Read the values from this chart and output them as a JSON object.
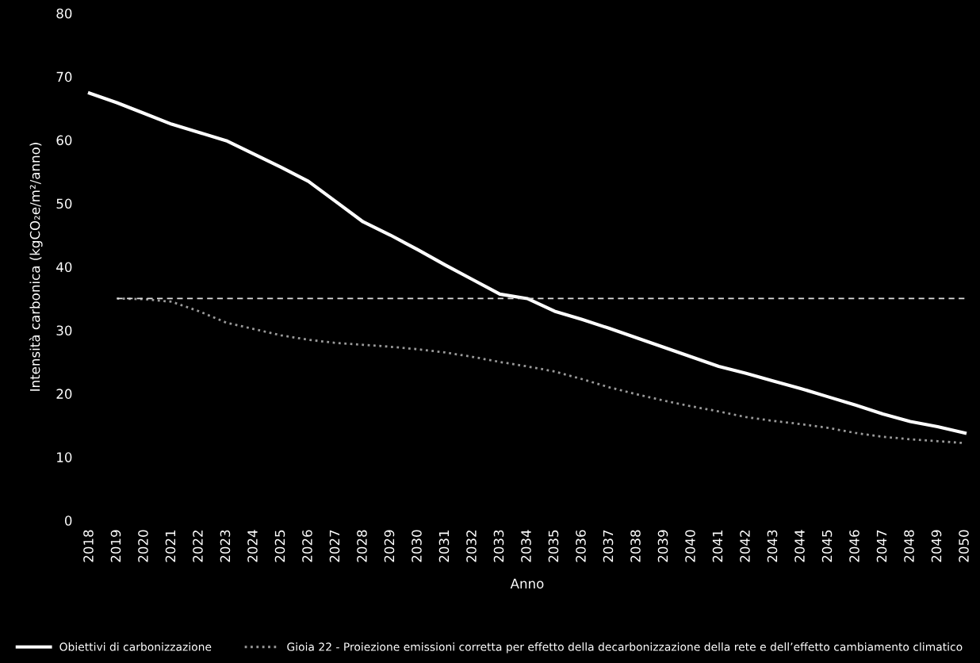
{
  "chart_data": {
    "type": "line",
    "xlabel": "Anno",
    "ylabel": "Intensità carbonica (kgCO₂e/m²/anno)",
    "categories": [
      "2018",
      "2019",
      "2020",
      "2021",
      "2022",
      "2023",
      "2024",
      "2025",
      "2026",
      "2027",
      "2028",
      "2029",
      "2030",
      "2031",
      "2032",
      "2033",
      "2034",
      "2035",
      "2036",
      "2037",
      "2038",
      "2039",
      "2040",
      "2041",
      "2042",
      "2043",
      "2044",
      "2045",
      "2046",
      "2047",
      "2048",
      "2049",
      "2050"
    ],
    "ylim": [
      0,
      80
    ],
    "yticks": [
      0,
      10,
      20,
      30,
      40,
      50,
      60,
      70,
      80
    ],
    "grid": false,
    "legend": "bottom",
    "series": [
      {
        "name": "Obiettivi di carbonizzazione",
        "color": "#ffffff",
        "line_style": "solid",
        "values": [
          67.4,
          65.9,
          64.2,
          62.5,
          61.2,
          59.9,
          57.8,
          55.7,
          53.5,
          50.3,
          47.1,
          45.0,
          42.7,
          40.3,
          38.0,
          35.7,
          35.0,
          33.0,
          31.7,
          30.3,
          28.8,
          27.3,
          25.8,
          24.3,
          23.2,
          22.0,
          20.8,
          19.5,
          18.2,
          16.8,
          15.6,
          14.8,
          13.8
        ]
      },
      {
        "name": "Gioia 22 - Proiezione emissioni corretta per effetto della decarbonizzazione della rete e dell’effetto cambiamento climatico",
        "color": "#9a9a9a",
        "line_style": "dotted",
        "values": [
          null,
          35.0,
          34.9,
          34.5,
          33.0,
          31.2,
          30.2,
          29.2,
          28.5,
          28.0,
          27.7,
          27.4,
          27.0,
          26.5,
          25.8,
          25.0,
          24.3,
          23.5,
          22.3,
          21.0,
          19.9,
          18.9,
          18.0,
          17.2,
          16.3,
          15.7,
          15.2,
          14.6,
          13.8,
          13.2,
          12.8,
          12.5,
          12.2
        ]
      },
      {
        "color": "#e0e0e0",
        "line_style": "dashed",
        "values": [
          null,
          35,
          35,
          35,
          35,
          35,
          35,
          35,
          35,
          35,
          35,
          35,
          35,
          35,
          35,
          35,
          35,
          35,
          35,
          35,
          35,
          35,
          35,
          35,
          35,
          35,
          35,
          35,
          35,
          35,
          35,
          35,
          35
        ]
      }
    ]
  }
}
